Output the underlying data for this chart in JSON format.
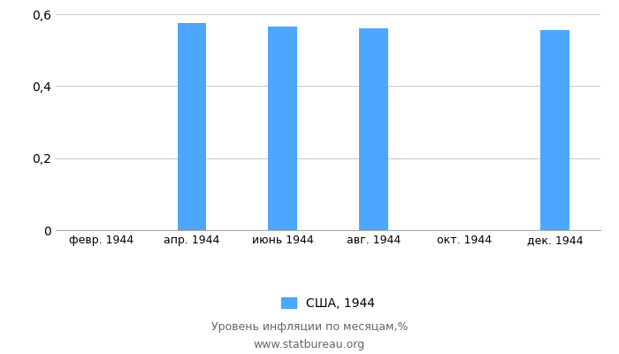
{
  "categories": [
    "февр. 1944",
    "апр. 1944",
    "июнь 1944",
    "авг. 1944",
    "окт. 1944",
    "дек. 1944"
  ],
  "values": [
    0,
    0.575,
    0.565,
    0.56,
    0,
    0.555
  ],
  "bar_color": "#4da6ff",
  "ylim": [
    0,
    0.6
  ],
  "yticks": [
    0,
    0.2,
    0.4,
    0.6
  ],
  "ytick_labels": [
    "0",
    "0,2",
    "0,4",
    "0,6"
  ],
  "legend_label": "США, 1944",
  "footer_line1": "Уровень инфляции по месяцам,%",
  "footer_line2": "www.statbureau.org",
  "bar_width": 0.32,
  "background_color": "#ffffff",
  "grid_color": "#cccccc",
  "spine_color": "#aaaaaa",
  "tick_fontsize": 10,
  "xtick_fontsize": 9
}
